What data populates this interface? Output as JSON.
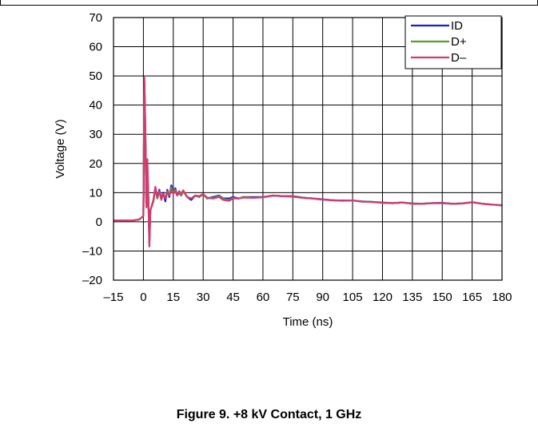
{
  "caption": "Figure 9. +8 kV Contact, 1 GHz",
  "chart_data": {
    "type": "line",
    "title": "",
    "xlabel": "Time (ns)",
    "ylabel": "Voltage (V)",
    "xlim": [
      -15,
      180
    ],
    "ylim": [
      -20,
      70
    ],
    "xticks": [
      -15,
      0,
      15,
      30,
      45,
      60,
      75,
      90,
      105,
      120,
      135,
      150,
      165,
      180
    ],
    "xtick_labels": [
      "–15",
      "0",
      "15",
      "30",
      "45",
      "60",
      "75",
      "90",
      "105",
      "120",
      "135",
      "150",
      "165",
      "180"
    ],
    "yticks": [
      -20,
      -10,
      0,
      10,
      20,
      30,
      40,
      50,
      60,
      70
    ],
    "ytick_labels": [
      "–20",
      "–10",
      "0",
      "10",
      "20",
      "30",
      "40",
      "50",
      "60",
      "70"
    ],
    "grid": true,
    "legend_position": "top-right",
    "series": [
      {
        "name": "ID",
        "color": "#1a1adc",
        "points": [
          [
            -15,
            0.5
          ],
          [
            -10,
            0.5
          ],
          [
            -5,
            0.5
          ],
          [
            -2,
            0.8
          ],
          [
            0,
            2
          ],
          [
            0.5,
            48
          ],
          [
            1,
            30
          ],
          [
            1.5,
            5
          ],
          [
            2,
            18
          ],
          [
            2.5,
            8
          ],
          [
            3,
            -7
          ],
          [
            3.5,
            4
          ],
          [
            5,
            7
          ],
          [
            6,
            11.5
          ],
          [
            7,
            8
          ],
          [
            8,
            11
          ],
          [
            9,
            8
          ],
          [
            10,
            10
          ],
          [
            11,
            7
          ],
          [
            12,
            11
          ],
          [
            13,
            8.5
          ],
          [
            14,
            12.5
          ],
          [
            15,
            10
          ],
          [
            16,
            11.5
          ],
          [
            17,
            9
          ],
          [
            18,
            10
          ],
          [
            19,
            9
          ],
          [
            20,
            10.5
          ],
          [
            22,
            8.5
          ],
          [
            24,
            7.5
          ],
          [
            26,
            9
          ],
          [
            28,
            8.5
          ],
          [
            30,
            9.5
          ],
          [
            32,
            8
          ],
          [
            35,
            8.5
          ],
          [
            38,
            9
          ],
          [
            40,
            8
          ],
          [
            43,
            8
          ],
          [
            45,
            8.5
          ],
          [
            48,
            8
          ],
          [
            50,
            8.5
          ],
          [
            55,
            8.5
          ],
          [
            60,
            8.5
          ],
          [
            65,
            9
          ],
          [
            70,
            8.8
          ],
          [
            75,
            8.8
          ],
          [
            80,
            8.3
          ],
          [
            85,
            8
          ],
          [
            90,
            7.7
          ],
          [
            95,
            7.4
          ],
          [
            100,
            7.3
          ],
          [
            105,
            7.3
          ],
          [
            110,
            7
          ],
          [
            115,
            6.8
          ],
          [
            120,
            6.6
          ],
          [
            125,
            6.4
          ],
          [
            130,
            6.6
          ],
          [
            135,
            6.3
          ],
          [
            140,
            6.2
          ],
          [
            145,
            6.4
          ],
          [
            150,
            6.5
          ],
          [
            155,
            6.2
          ],
          [
            160,
            6.3
          ],
          [
            165,
            6.7
          ],
          [
            170,
            6.2
          ],
          [
            175,
            5.9
          ],
          [
            180,
            5.7
          ]
        ]
      },
      {
        "name": "D+",
        "color": "#5c9c2c",
        "points": [
          [
            -15,
            0.5
          ],
          [
            -10,
            0.5
          ],
          [
            -5,
            0.5
          ],
          [
            -2,
            0.8
          ],
          [
            0,
            2
          ],
          [
            0.5,
            48.5
          ],
          [
            1,
            30
          ],
          [
            1.5,
            5
          ],
          [
            2,
            19
          ],
          [
            2.5,
            8
          ],
          [
            3,
            -7.5
          ],
          [
            3.5,
            4
          ],
          [
            5,
            7.5
          ],
          [
            6,
            11.8
          ],
          [
            7,
            8
          ],
          [
            8,
            10.5
          ],
          [
            9,
            8
          ],
          [
            10,
            9.5
          ],
          [
            11,
            8
          ],
          [
            12,
            10.5
          ],
          [
            13,
            9
          ],
          [
            14,
            11.8
          ],
          [
            15,
            10
          ],
          [
            16,
            11
          ],
          [
            17,
            9
          ],
          [
            18,
            10.5
          ],
          [
            19,
            9
          ],
          [
            20,
            10.5
          ],
          [
            22,
            8.5
          ],
          [
            24,
            8
          ],
          [
            26,
            9
          ],
          [
            28,
            8.5
          ],
          [
            30,
            9.5
          ],
          [
            32,
            8
          ],
          [
            35,
            8.2
          ],
          [
            38,
            8.8
          ],
          [
            40,
            7.8
          ],
          [
            43,
            7.5
          ],
          [
            45,
            8.2
          ],
          [
            48,
            8
          ],
          [
            50,
            8.5
          ],
          [
            55,
            8.3
          ],
          [
            60,
            8.4
          ],
          [
            65,
            9
          ],
          [
            70,
            8.8
          ],
          [
            75,
            8.7
          ],
          [
            80,
            8.2
          ],
          [
            85,
            8
          ],
          [
            90,
            7.6
          ],
          [
            95,
            7.4
          ],
          [
            100,
            7.2
          ],
          [
            105,
            7.3
          ],
          [
            110,
            6.9
          ],
          [
            115,
            6.8
          ],
          [
            120,
            6.5
          ],
          [
            125,
            6.4
          ],
          [
            130,
            6.6
          ],
          [
            135,
            6.2
          ],
          [
            140,
            6.2
          ],
          [
            145,
            6.4
          ],
          [
            150,
            6.4
          ],
          [
            155,
            6.2
          ],
          [
            160,
            6.3
          ],
          [
            165,
            6.7
          ],
          [
            170,
            6.2
          ],
          [
            175,
            5.9
          ],
          [
            180,
            5.6
          ]
        ]
      },
      {
        "name": "D–",
        "color": "#d43a6e",
        "points": [
          [
            -15,
            0.5
          ],
          [
            -10,
            0.5
          ],
          [
            -5,
            0.5
          ],
          [
            -2,
            0.8
          ],
          [
            0,
            2
          ],
          [
            0.5,
            49.5
          ],
          [
            1,
            30
          ],
          [
            1.5,
            5
          ],
          [
            2,
            21.5
          ],
          [
            2.5,
            8
          ],
          [
            3,
            -8.5
          ],
          [
            3.5,
            4
          ],
          [
            5,
            7
          ],
          [
            6,
            12
          ],
          [
            7,
            8.5
          ],
          [
            8,
            10.5
          ],
          [
            9,
            7.5
          ],
          [
            10,
            9.5
          ],
          [
            11,
            8
          ],
          [
            12,
            10
          ],
          [
            13,
            9
          ],
          [
            14,
            11
          ],
          [
            15,
            9.5
          ],
          [
            16,
            10.5
          ],
          [
            17,
            9
          ],
          [
            18,
            10.5
          ],
          [
            19,
            9.5
          ],
          [
            20,
            10.8
          ],
          [
            22,
            8.5
          ],
          [
            24,
            8
          ],
          [
            26,
            9
          ],
          [
            28,
            8.8
          ],
          [
            30,
            9.5
          ],
          [
            32,
            8.3
          ],
          [
            35,
            8
          ],
          [
            38,
            8.5
          ],
          [
            40,
            7.5
          ],
          [
            43,
            7.2
          ],
          [
            45,
            8
          ],
          [
            48,
            8
          ],
          [
            50,
            8.3
          ],
          [
            55,
            8.2
          ],
          [
            60,
            8.4
          ],
          [
            65,
            9
          ],
          [
            70,
            8.8
          ],
          [
            75,
            8.6
          ],
          [
            80,
            8.2
          ],
          [
            85,
            8
          ],
          [
            90,
            7.6
          ],
          [
            95,
            7.4
          ],
          [
            100,
            7.2
          ],
          [
            105,
            7.3
          ],
          [
            110,
            6.9
          ],
          [
            115,
            6.8
          ],
          [
            120,
            6.5
          ],
          [
            125,
            6.4
          ],
          [
            130,
            6.6
          ],
          [
            135,
            6.2
          ],
          [
            140,
            6.2
          ],
          [
            145,
            6.4
          ],
          [
            150,
            6.4
          ],
          [
            155,
            6.2
          ],
          [
            160,
            6.3
          ],
          [
            165,
            6.7
          ],
          [
            170,
            6.2
          ],
          [
            175,
            5.9
          ],
          [
            180,
            5.6
          ]
        ]
      }
    ]
  }
}
